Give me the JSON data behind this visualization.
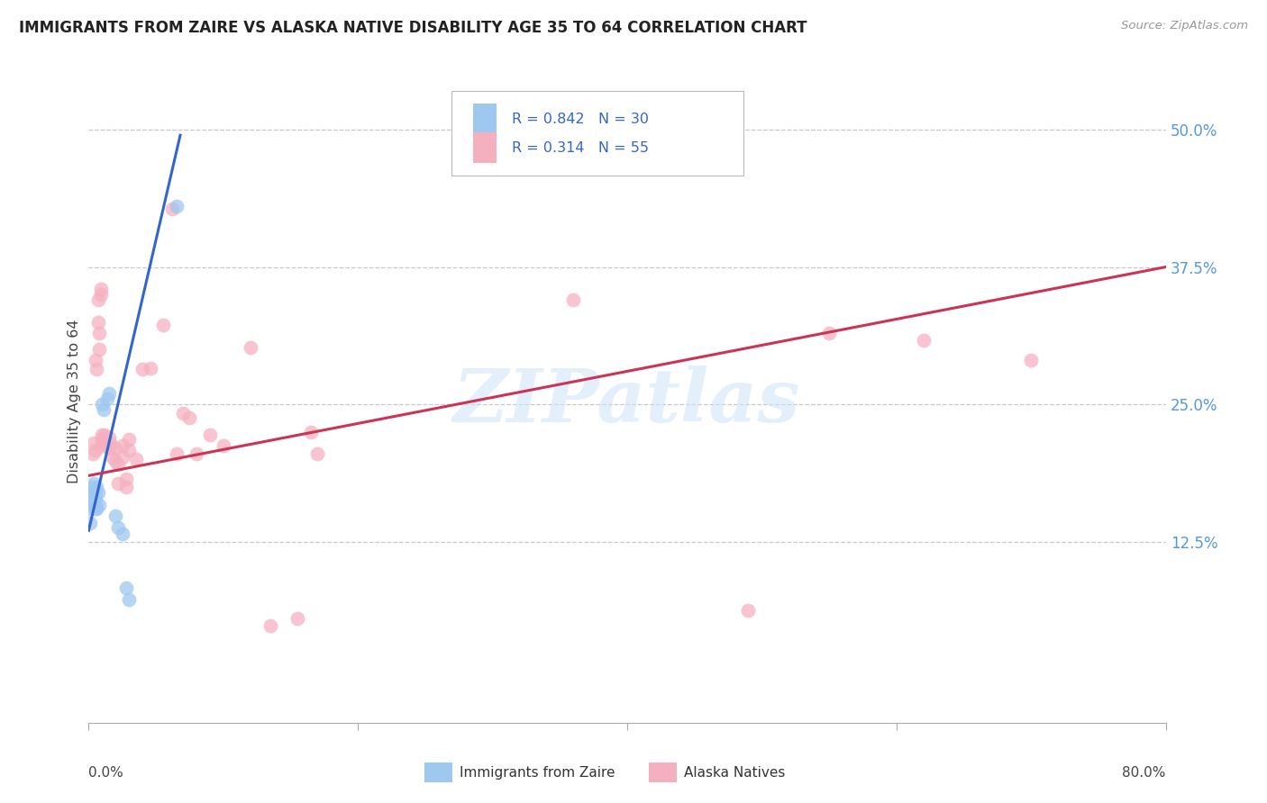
{
  "title": "IMMIGRANTS FROM ZAIRE VS ALASKA NATIVE DISABILITY AGE 35 TO 64 CORRELATION CHART",
  "source": "Source: ZipAtlas.com",
  "ylabel": "Disability Age 35 to 64",
  "ytick_labels": [
    "12.5%",
    "25.0%",
    "37.5%",
    "50.0%"
  ],
  "ytick_values": [
    0.125,
    0.25,
    0.375,
    0.5
  ],
  "xlim": [
    0.0,
    0.8
  ],
  "ylim": [
    -0.04,
    0.545
  ],
  "legend_label1": "Immigrants from Zaire",
  "legend_label2": "Alaska Natives",
  "color_blue": "#9ec8f0",
  "color_pink": "#f5b0c0",
  "line_blue": "#3366cc",
  "line_pink": "#cc3355",
  "watermark": "ZIPatlas",
  "blue_line_x0": 0.0,
  "blue_line_y0": 0.135,
  "blue_line_x1": 0.068,
  "blue_line_y1": 0.495,
  "pink_line_x0": 0.0,
  "pink_line_y0": 0.185,
  "pink_line_x1": 0.8,
  "pink_line_y1": 0.375,
  "blue_scatter": [
    [
      0.001,
      0.16
    ],
    [
      0.001,
      0.155
    ],
    [
      0.001,
      0.165
    ],
    [
      0.002,
      0.175
    ],
    [
      0.002,
      0.168
    ],
    [
      0.002,
      0.162
    ],
    [
      0.003,
      0.17
    ],
    [
      0.003,
      0.165
    ],
    [
      0.003,
      0.158
    ],
    [
      0.004,
      0.172
    ],
    [
      0.004,
      0.16
    ],
    [
      0.004,
      0.178
    ],
    [
      0.005,
      0.168
    ],
    [
      0.005,
      0.162
    ],
    [
      0.005,
      0.155
    ],
    [
      0.006,
      0.175
    ],
    [
      0.006,
      0.155
    ],
    [
      0.007,
      0.17
    ],
    [
      0.008,
      0.158
    ],
    [
      0.01,
      0.25
    ],
    [
      0.011,
      0.245
    ],
    [
      0.014,
      0.255
    ],
    [
      0.015,
      0.26
    ],
    [
      0.02,
      0.148
    ],
    [
      0.022,
      0.138
    ],
    [
      0.025,
      0.132
    ],
    [
      0.028,
      0.083
    ],
    [
      0.03,
      0.072
    ],
    [
      0.065,
      0.43
    ],
    [
      0.001,
      0.142
    ]
  ],
  "pink_scatter": [
    [
      0.003,
      0.205
    ],
    [
      0.004,
      0.215
    ],
    [
      0.005,
      0.208
    ],
    [
      0.005,
      0.29
    ],
    [
      0.006,
      0.282
    ],
    [
      0.007,
      0.345
    ],
    [
      0.007,
      0.325
    ],
    [
      0.008,
      0.315
    ],
    [
      0.008,
      0.3
    ],
    [
      0.009,
      0.355
    ],
    [
      0.009,
      0.35
    ],
    [
      0.01,
      0.222
    ],
    [
      0.01,
      0.218
    ],
    [
      0.01,
      0.212
    ],
    [
      0.012,
      0.222
    ],
    [
      0.012,
      0.215
    ],
    [
      0.015,
      0.22
    ],
    [
      0.015,
      0.21
    ],
    [
      0.016,
      0.215
    ],
    [
      0.018,
      0.202
    ],
    [
      0.02,
      0.21
    ],
    [
      0.02,
      0.198
    ],
    [
      0.022,
      0.195
    ],
    [
      0.022,
      0.178
    ],
    [
      0.025,
      0.212
    ],
    [
      0.025,
      0.202
    ],
    [
      0.028,
      0.182
    ],
    [
      0.028,
      0.175
    ],
    [
      0.03,
      0.218
    ],
    [
      0.03,
      0.208
    ],
    [
      0.035,
      0.2
    ],
    [
      0.04,
      0.282
    ],
    [
      0.046,
      0.283
    ],
    [
      0.055,
      0.322
    ],
    [
      0.062,
      0.428
    ],
    [
      0.065,
      0.205
    ],
    [
      0.07,
      0.242
    ],
    [
      0.075,
      0.238
    ],
    [
      0.08,
      0.205
    ],
    [
      0.09,
      0.222
    ],
    [
      0.1,
      0.212
    ],
    [
      0.12,
      0.302
    ],
    [
      0.135,
      0.048
    ],
    [
      0.155,
      0.055
    ],
    [
      0.165,
      0.225
    ],
    [
      0.17,
      0.205
    ],
    [
      0.36,
      0.345
    ],
    [
      0.49,
      0.062
    ],
    [
      0.55,
      0.315
    ],
    [
      0.62,
      0.308
    ],
    [
      0.7,
      0.29
    ]
  ]
}
